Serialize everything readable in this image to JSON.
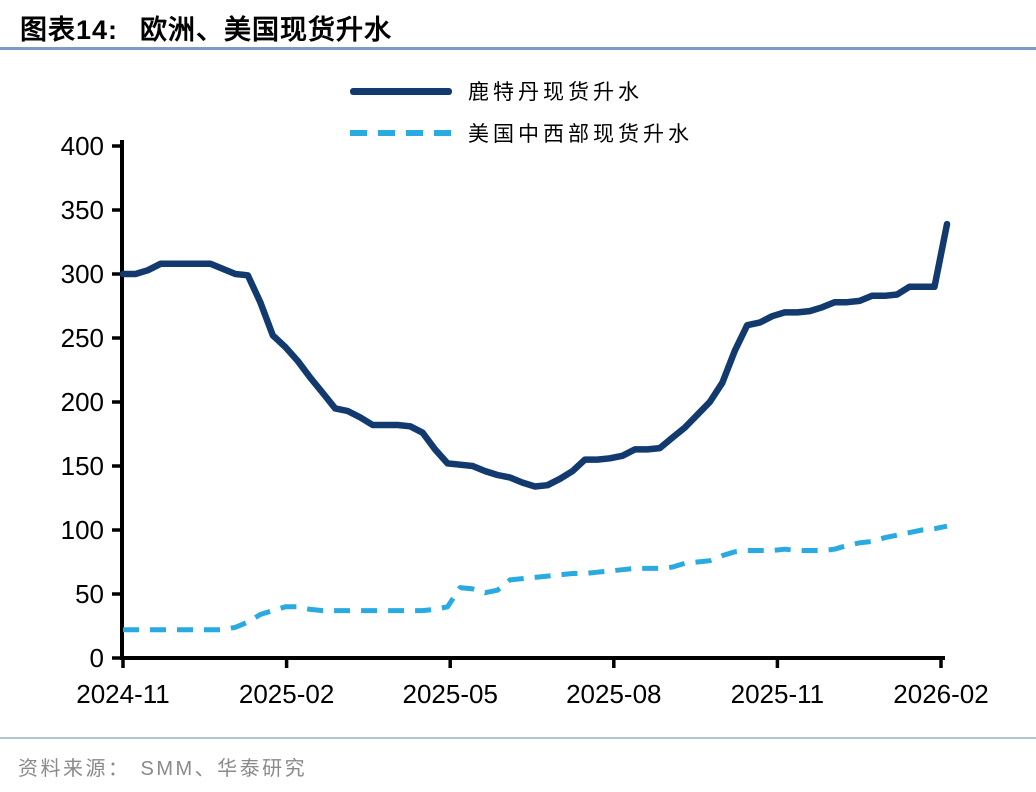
{
  "header": {
    "figure_label": "图表14:",
    "title": "欧洲、美国现货升水"
  },
  "legend": [
    {
      "label": "鹿特丹现货升水",
      "color": "#123A6E",
      "style": "solid"
    },
    {
      "label": "美国中西部现货升水",
      "color": "#29ABE2",
      "style": "dashed"
    }
  ],
  "footer": {
    "source_label": "资料来源：",
    "source_text": "SMM、华泰研究"
  },
  "colors": {
    "rotterdam_line": "#123A6E",
    "us_midwest_line": "#29ABE2",
    "axis": "#000000",
    "header_rule": "#7c9cc6",
    "footer_rule": "#b0c4da",
    "source_text": "#8a8a8a"
  },
  "chart_data": {
    "type": "line",
    "title": "欧洲、美国现货升水",
    "xlabel": "",
    "ylabel": "",
    "ylim": [
      0,
      400
    ],
    "y_ticks": [
      0,
      50,
      100,
      150,
      200,
      250,
      300,
      350,
      400
    ],
    "x_ticks": [
      "2024-11",
      "2025-02",
      "2025-05",
      "2025-08",
      "2025-11",
      "2026-02"
    ],
    "grid": false,
    "legend_position": "top",
    "x_frequency": "weekly",
    "series": [
      {
        "name": "鹿特丹现货升水",
        "data_name": "rotterdam-series-line",
        "color": "#123A6E",
        "dash": false,
        "values": [
          300,
          300,
          303,
          308,
          308,
          308,
          308,
          308,
          304,
          300,
          299,
          278,
          252,
          243,
          232,
          219,
          207,
          195,
          193,
          188,
          182,
          182,
          182,
          181,
          176,
          163,
          152,
          151,
          150,
          146,
          143,
          141,
          137,
          134,
          135,
          140,
          146,
          155,
          155,
          156,
          158,
          163,
          163,
          164,
          172,
          180,
          190,
          200,
          215,
          240,
          260,
          262,
          267,
          270,
          270,
          271,
          274,
          278,
          278,
          279,
          283,
          283,
          284,
          290,
          290,
          290,
          339
        ]
      },
      {
        "name": "美国中西部现货升水",
        "data_name": "us-midwest-series-line",
        "color": "#29ABE2",
        "dash": true,
        "values": [
          22,
          22,
          22,
          22,
          22,
          22,
          22,
          22,
          22,
          24,
          28,
          34,
          37,
          40,
          40,
          38,
          37,
          37,
          37,
          37,
          37,
          37,
          37,
          37,
          37,
          38,
          40,
          55,
          54,
          51,
          53,
          61,
          62,
          63,
          64,
          65,
          66,
          66,
          67,
          68,
          69,
          70,
          70,
          70,
          71,
          74,
          75,
          76,
          80,
          83,
          84,
          84,
          84,
          85,
          84,
          84,
          84,
          85,
          88,
          90,
          91,
          94,
          96,
          98,
          100,
          101,
          103
        ]
      }
    ]
  }
}
